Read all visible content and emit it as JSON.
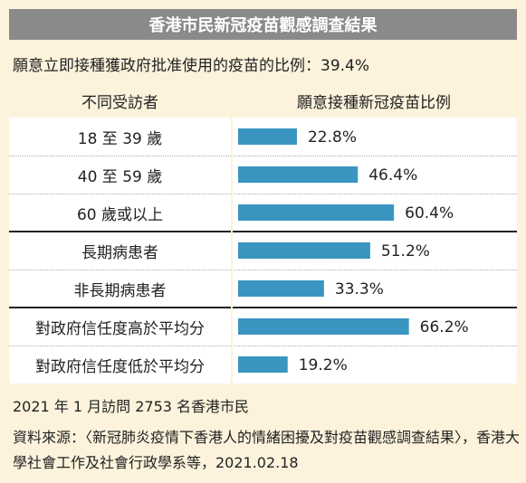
{
  "title": "香港市民新冠疫苗觀感調查結果",
  "subtitle": "願意立即接種獲政府批准使用的疫苗的比例：39.4%",
  "header": {
    "left": "不同受訪者",
    "right": "願意接種新冠疫苗比例"
  },
  "colors": {
    "bar": "#3a95c0",
    "header_bg": "#8a8a8a",
    "page_bg": "#fdf3dc"
  },
  "chart_data": {
    "type": "bar",
    "orientation": "horizontal",
    "categories": [
      "18 至 39 歲",
      "40 至 59 歲",
      "60 歲或以上",
      "長期病患者",
      "非長期病患者",
      "對政府信任度高於平均分",
      "對政府信任度低於平均分"
    ],
    "values": [
      22.8,
      46.4,
      60.4,
      51.2,
      33.3,
      66.2,
      19.2
    ],
    "value_labels": [
      "22.8%",
      "46.4%",
      "60.4%",
      "51.2%",
      "33.3%",
      "66.2%",
      "19.2%"
    ],
    "title": "",
    "xlabel": "",
    "ylabel": "",
    "xlim": [
      0,
      100
    ],
    "grid": false,
    "legend": "none"
  },
  "footer": {
    "survey_note": "2021 年 1 月訪問 2753 名香港市民",
    "source": "資料來源：〈新冠肺炎疫情下香港人的情緒困擾及對疫苗觀感調查結果〉，香港大學社會工作及社會行政學系等，2021.02.18"
  }
}
